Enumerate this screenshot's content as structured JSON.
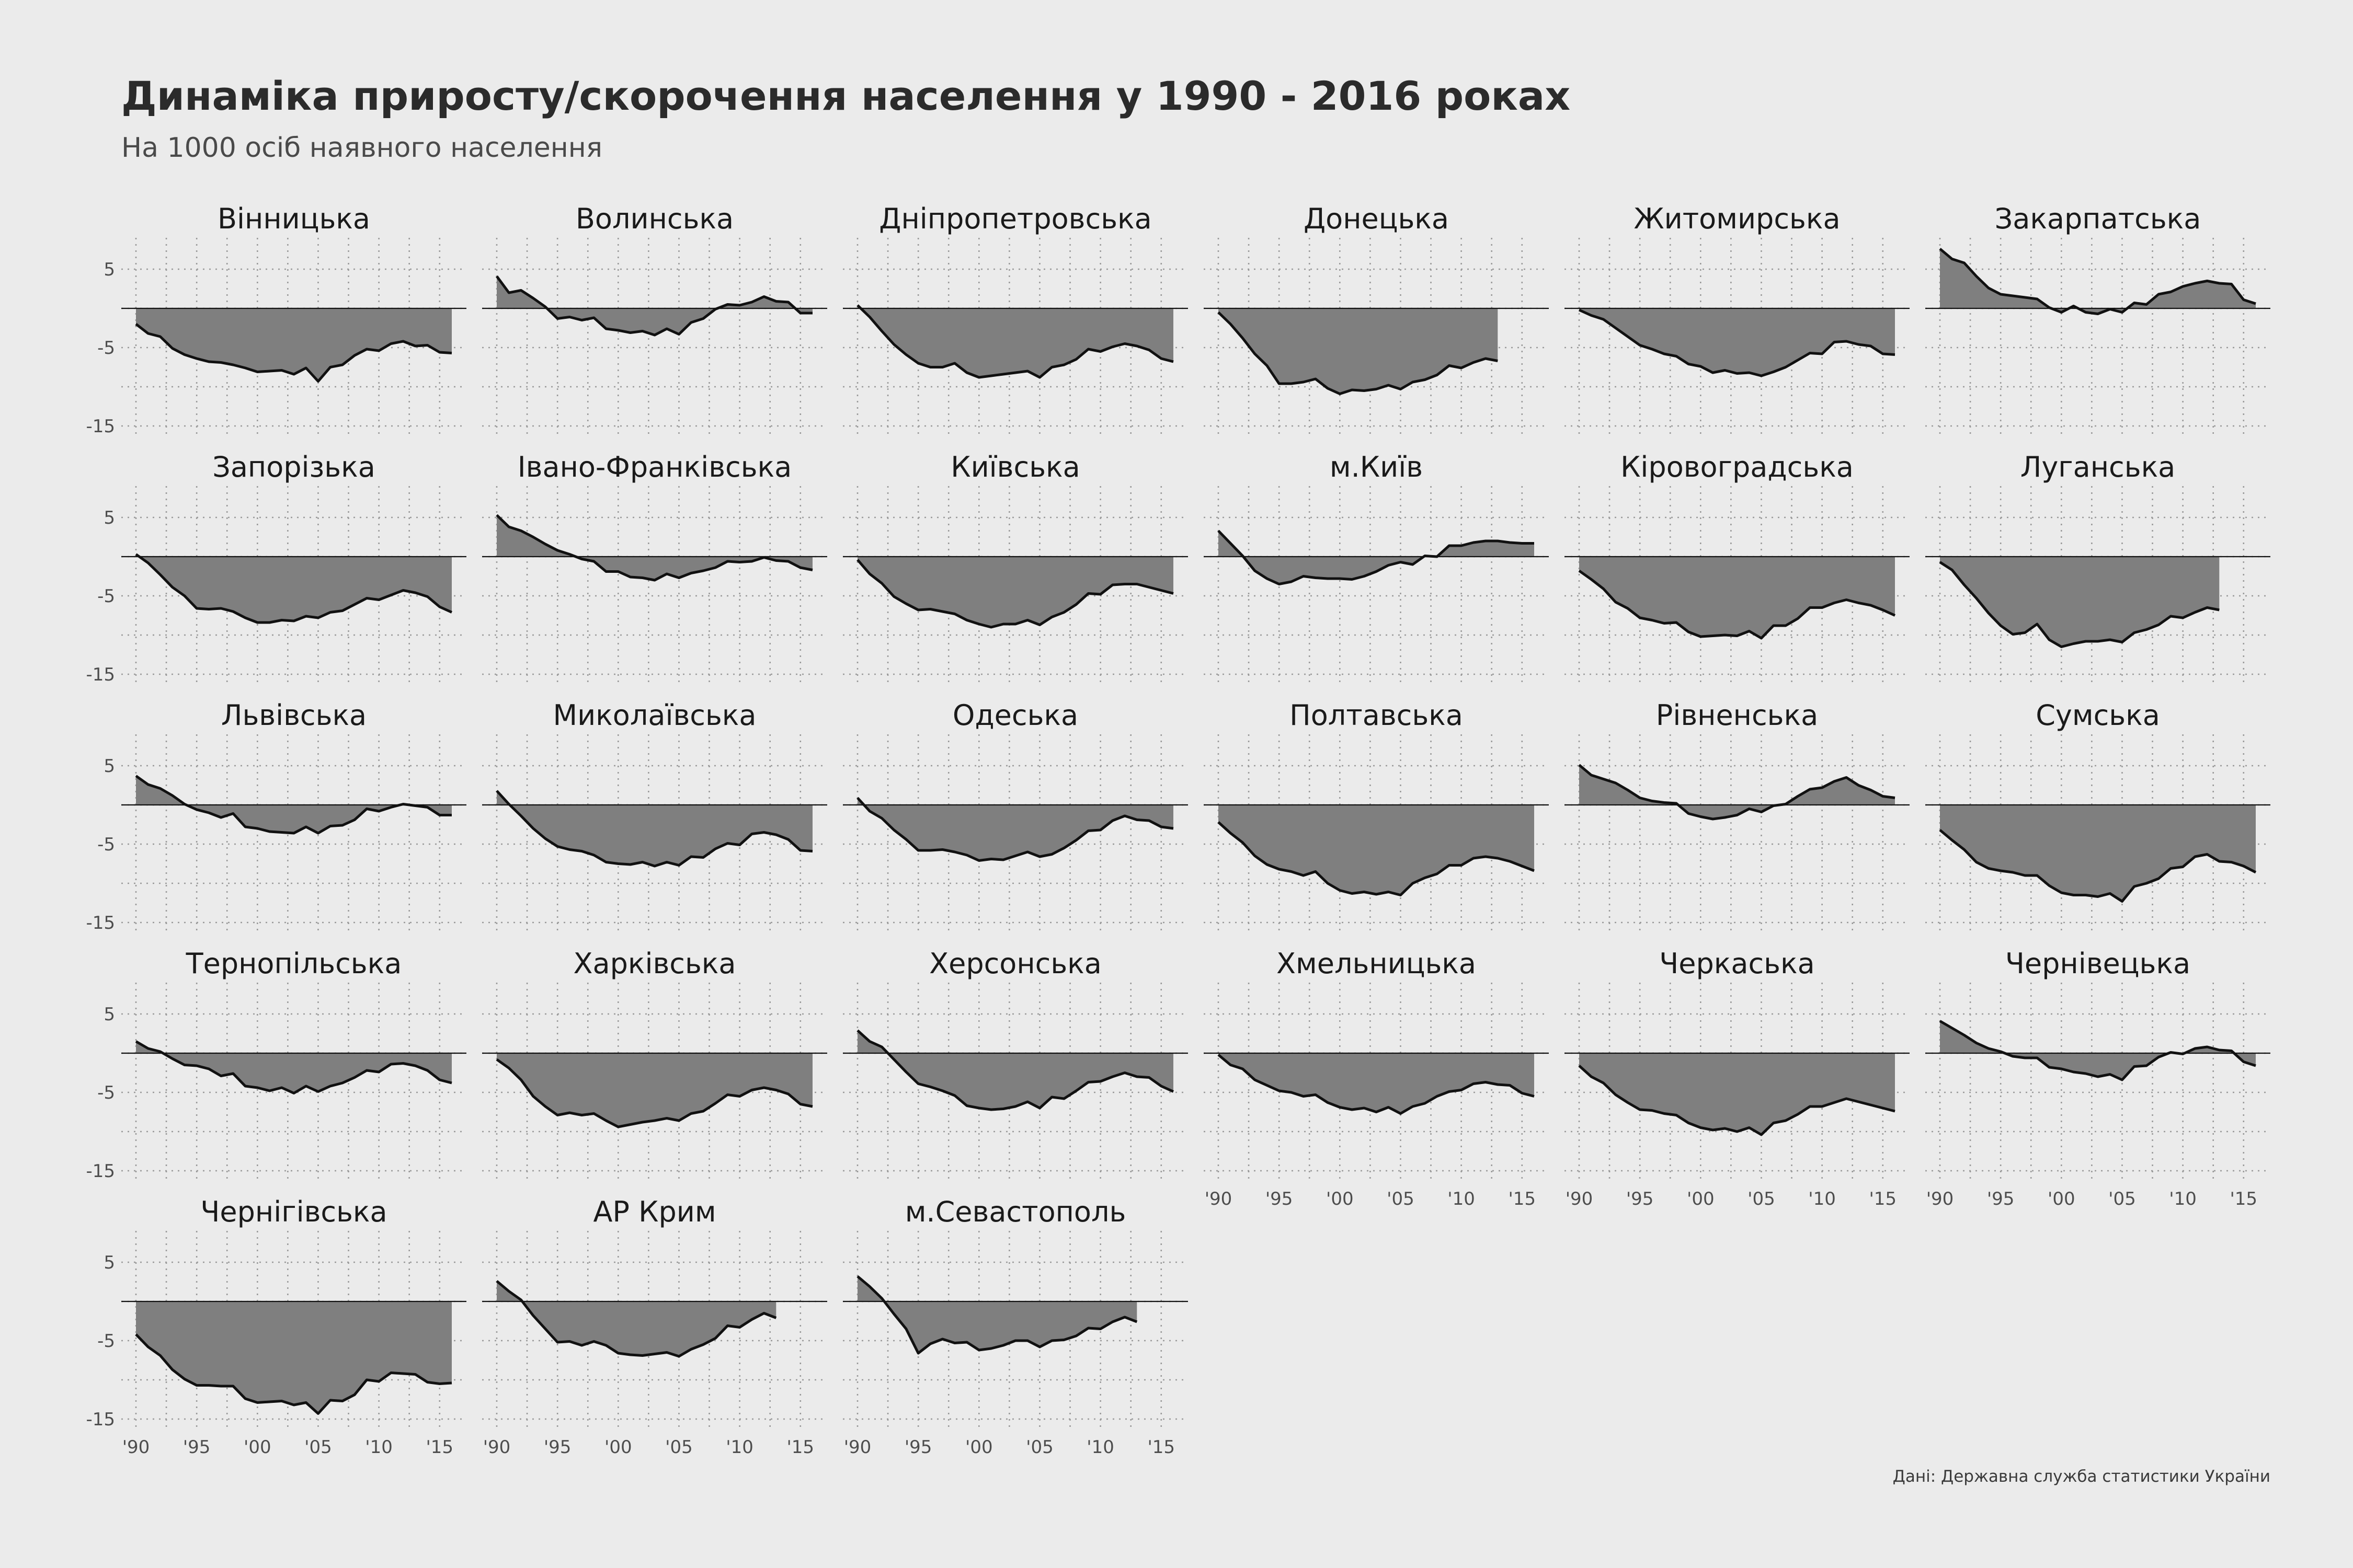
{
  "title": "Динаміка приросту/скорочення населення у 1990 - 2016 роках",
  "subtitle": "На 1000 осіб наявного населення",
  "caption": "Дані: Державна служба статистики України",
  "chart_data": {
    "type": "area",
    "x_start": 1990,
    "x_end": 2016,
    "x_ticks": [
      1990,
      1995,
      2000,
      2005,
      2010,
      2015
    ],
    "x_tick_labels": [
      "'90",
      "'95",
      "'00",
      "'05",
      "'10",
      "'15"
    ],
    "y_ticks": [
      5,
      -5,
      -15
    ],
    "y_tick_labels": [
      "5",
      "-5",
      "-15"
    ],
    "ylim": [
      -16,
      9
    ],
    "grid": true,
    "colors": {
      "area": "#7f7f7f",
      "line": "#111111",
      "background": "#ebebeb"
    },
    "panels": [
      {
        "name": "Вінницька",
        "values": [
          -2.0,
          -3.2,
          -3.6,
          -5.1,
          -5.9,
          -6.4,
          -6.8,
          -6.9,
          -7.2,
          -7.6,
          -8.1,
          -8.0,
          -7.9,
          -8.4,
          -7.6,
          -9.3,
          -7.5,
          -7.2,
          -6.0,
          -5.2,
          -5.4,
          -4.5,
          -4.2,
          -4.8,
          -4.7,
          -5.6,
          -5.7
        ]
      },
      {
        "name": "Волинська",
        "values": [
          4.1,
          2.0,
          2.3,
          1.3,
          0.2,
          -1.3,
          -1.1,
          -1.5,
          -1.2,
          -2.6,
          -2.8,
          -3.1,
          -2.9,
          -3.4,
          -2.6,
          -3.3,
          -1.8,
          -1.3,
          -0.1,
          0.5,
          0.4,
          0.8,
          1.5,
          0.9,
          0.8,
          -0.6,
          -0.6
        ]
      },
      {
        "name": "Дніпропетровська",
        "values": [
          0.4,
          -1.1,
          -2.9,
          -4.6,
          -5.9,
          -7.0,
          -7.5,
          -7.5,
          -7.0,
          -8.2,
          -8.8,
          -8.6,
          -8.4,
          -8.2,
          -8.0,
          -8.8,
          -7.5,
          -7.2,
          -6.5,
          -5.2,
          -5.5,
          -4.9,
          -4.5,
          -4.8,
          -5.3,
          -6.4,
          -6.8
        ]
      },
      {
        "name": "Донецька",
        "values": [
          -0.5,
          -2.0,
          -3.8,
          -5.8,
          -7.3,
          -9.6,
          -9.6,
          -9.4,
          -9.0,
          -10.2,
          -10.9,
          -10.4,
          -10.5,
          -10.3,
          -9.8,
          -10.3,
          -9.4,
          -9.1,
          -8.5,
          -7.3,
          -7.6,
          -6.9,
          -6.4,
          -6.7,
          null,
          null,
          null
        ]
      },
      {
        "name": "Житомирська",
        "values": [
          -0.2,
          -0.9,
          -1.4,
          -2.5,
          -3.6,
          -4.7,
          -5.2,
          -5.8,
          -6.1,
          -7.1,
          -7.4,
          -8.2,
          -7.9,
          -8.3,
          -8.2,
          -8.6,
          -8.1,
          -7.5,
          -6.6,
          -5.7,
          -5.8,
          -4.3,
          -4.2,
          -4.6,
          -4.8,
          -5.8,
          -5.9
        ]
      },
      {
        "name": "Закарпатська",
        "values": [
          7.6,
          6.3,
          5.8,
          4.1,
          2.6,
          1.8,
          1.6,
          1.4,
          1.2,
          0.1,
          -0.5,
          0.3,
          -0.5,
          -0.7,
          -0.1,
          -0.5,
          0.7,
          0.5,
          1.8,
          2.1,
          2.8,
          3.2,
          3.5,
          3.2,
          3.1,
          1.1,
          0.6
        ]
      },
      {
        "name": "Запорізька",
        "values": [
          0.3,
          -0.8,
          -2.3,
          -3.9,
          -5.0,
          -6.6,
          -6.7,
          -6.6,
          -7.0,
          -7.8,
          -8.4,
          -8.4,
          -8.1,
          -8.2,
          -7.6,
          -7.8,
          -7.1,
          -6.9,
          -6.1,
          -5.3,
          -5.5,
          -4.9,
          -4.3,
          -4.6,
          -5.1,
          -6.4,
          -7.1
        ]
      },
      {
        "name": "Івано-Франківська",
        "values": [
          5.3,
          3.8,
          3.3,
          2.5,
          1.6,
          0.8,
          0.3,
          -0.3,
          -0.6,
          -1.9,
          -1.9,
          -2.6,
          -2.7,
          -3.0,
          -2.2,
          -2.7,
          -2.1,
          -1.8,
          -1.4,
          -0.6,
          -0.7,
          -0.6,
          -0.1,
          -0.5,
          -0.6,
          -1.4,
          -1.7
        ]
      },
      {
        "name": "Київська",
        "values": [
          -0.4,
          -2.2,
          -3.4,
          -5.1,
          -6.0,
          -6.8,
          -6.7,
          -7.0,
          -7.3,
          -8.1,
          -8.6,
          -9.0,
          -8.6,
          -8.6,
          -8.1,
          -8.7,
          -7.7,
          -7.1,
          -6.1,
          -4.7,
          -4.8,
          -3.6,
          -3.5,
          -3.5,
          -3.9,
          -4.3,
          -4.7
        ]
      },
      {
        "name": "м.Київ",
        "values": [
          3.3,
          1.7,
          0.1,
          -1.8,
          -2.8,
          -3.5,
          -3.2,
          -2.5,
          -2.7,
          -2.8,
          -2.8,
          -2.9,
          -2.5,
          -1.9,
          -1.1,
          -0.7,
          -1.0,
          0.1,
          0.0,
          1.4,
          1.4,
          1.8,
          2.0,
          2.0,
          1.8,
          1.7,
          1.7
        ]
      },
      {
        "name": "Кіровоградська",
        "values": [
          -1.8,
          -2.9,
          -4.1,
          -5.8,
          -6.6,
          -7.8,
          -8.1,
          -8.5,
          -8.4,
          -9.6,
          -10.2,
          -10.1,
          -10.0,
          -10.1,
          -9.5,
          -10.4,
          -8.8,
          -8.8,
          -7.9,
          -6.5,
          -6.5,
          -5.9,
          -5.5,
          -5.9,
          -6.2,
          -6.8,
          -7.5
        ]
      },
      {
        "name": "Луганська",
        "values": [
          -0.7,
          -1.7,
          -3.6,
          -5.3,
          -7.2,
          -8.8,
          -9.9,
          -9.7,
          -8.6,
          -10.6,
          -11.5,
          -11.1,
          -10.8,
          -10.8,
          -10.6,
          -10.9,
          -9.7,
          -9.3,
          -8.7,
          -7.6,
          -7.8,
          -7.1,
          -6.5,
          -6.8,
          null,
          null,
          null
        ]
      },
      {
        "name": "Львівська",
        "values": [
          3.7,
          2.6,
          2.1,
          1.2,
          0.1,
          -0.6,
          -1.0,
          -1.6,
          -1.1,
          -2.8,
          -3.0,
          -3.4,
          -3.5,
          -3.6,
          -2.8,
          -3.6,
          -2.7,
          -2.6,
          -1.9,
          -0.5,
          -0.8,
          -0.3,
          0.1,
          -0.1,
          -0.3,
          -1.3,
          -1.3
        ]
      },
      {
        "name": "Миколаївська",
        "values": [
          1.8,
          0.1,
          -1.4,
          -3.0,
          -4.3,
          -5.3,
          -5.7,
          -5.9,
          -6.4,
          -7.3,
          -7.5,
          -7.6,
          -7.3,
          -7.8,
          -7.3,
          -7.7,
          -6.6,
          -6.7,
          -5.6,
          -4.9,
          -5.1,
          -3.7,
          -3.5,
          -3.8,
          -4.4,
          -5.8,
          -5.9
        ]
      },
      {
        "name": "Одеська",
        "values": [
          0.9,
          -0.8,
          -1.7,
          -3.2,
          -4.4,
          -5.8,
          -5.8,
          -5.7,
          -6.0,
          -6.4,
          -7.1,
          -6.9,
          -7.0,
          -6.5,
          -6.0,
          -6.6,
          -6.3,
          -5.5,
          -4.5,
          -3.3,
          -3.2,
          -2.0,
          -1.4,
          -1.9,
          -2.0,
          -2.8,
          -3.0
        ]
      },
      {
        "name": "Полтавська",
        "values": [
          -2.2,
          -3.6,
          -4.8,
          -6.5,
          -7.6,
          -8.2,
          -8.5,
          -9.0,
          -8.5,
          -10.0,
          -10.9,
          -11.3,
          -11.1,
          -11.4,
          -11.1,
          -11.5,
          -10.0,
          -9.3,
          -8.8,
          -7.7,
          -7.7,
          -6.8,
          -6.6,
          -6.8,
          -7.2,
          -7.8,
          -8.4
        ]
      },
      {
        "name": "Рівненська",
        "values": [
          5.1,
          3.8,
          3.3,
          2.8,
          1.9,
          0.9,
          0.5,
          0.3,
          0.2,
          -1.1,
          -1.5,
          -1.8,
          -1.6,
          -1.3,
          -0.5,
          -0.9,
          -0.1,
          0.1,
          1.1,
          2.0,
          2.2,
          3.0,
          3.5,
          2.5,
          1.9,
          1.1,
          0.9
        ]
      },
      {
        "name": "Сумська",
        "values": [
          -3.2,
          -4.5,
          -5.7,
          -7.3,
          -8.1,
          -8.4,
          -8.6,
          -9.0,
          -9.0,
          -10.3,
          -11.2,
          -11.5,
          -11.5,
          -11.7,
          -11.3,
          -12.3,
          -10.4,
          -10.0,
          -9.4,
          -8.1,
          -7.9,
          -6.6,
          -6.3,
          -7.2,
          -7.3,
          -7.8,
          -8.6
        ]
      },
      {
        "name": "Тернопільська",
        "values": [
          1.5,
          0.6,
          0.2,
          -0.7,
          -1.5,
          -1.6,
          -2.0,
          -2.9,
          -2.6,
          -4.2,
          -4.4,
          -4.8,
          -4.4,
          -5.1,
          -4.2,
          -4.9,
          -4.2,
          -3.8,
          -3.1,
          -2.2,
          -2.4,
          -1.4,
          -1.3,
          -1.6,
          -2.2,
          -3.4,
          -3.8
        ]
      },
      {
        "name": "Харківська",
        "values": [
          -0.8,
          -1.9,
          -3.4,
          -5.5,
          -6.8,
          -7.9,
          -7.6,
          -7.9,
          -7.7,
          -8.6,
          -9.4,
          -9.1,
          -8.8,
          -8.6,
          -8.3,
          -8.6,
          -7.7,
          -7.4,
          -6.4,
          -5.3,
          -5.5,
          -4.7,
          -4.4,
          -4.7,
          -5.2,
          -6.5,
          -6.8
        ]
      },
      {
        "name": "Херсонська",
        "values": [
          2.9,
          1.5,
          0.8,
          -0.8,
          -2.4,
          -3.9,
          -4.3,
          -4.8,
          -5.4,
          -6.7,
          -7.0,
          -7.2,
          -7.1,
          -6.8,
          -6.2,
          -7.0,
          -5.6,
          -5.8,
          -4.8,
          -3.7,
          -3.6,
          -3.0,
          -2.5,
          -3.0,
          -3.1,
          -4.2,
          -4.9
        ]
      },
      {
        "name": "Хмельницька",
        "values": [
          -0.2,
          -1.5,
          -2.0,
          -3.4,
          -4.1,
          -4.8,
          -5.0,
          -5.5,
          -5.3,
          -6.3,
          -6.9,
          -7.2,
          -7.0,
          -7.5,
          -6.9,
          -7.7,
          -6.8,
          -6.4,
          -5.5,
          -4.9,
          -4.7,
          -3.9,
          -3.7,
          -4.0,
          -4.1,
          -5.1,
          -5.5
        ]
      },
      {
        "name": "Черкаська",
        "values": [
          -1.6,
          -3.0,
          -3.8,
          -5.3,
          -6.3,
          -7.2,
          -7.3,
          -7.7,
          -7.9,
          -8.9,
          -9.5,
          -9.8,
          -9.6,
          -10.0,
          -9.5,
          -10.4,
          -8.9,
          -8.6,
          -7.8,
          -6.8,
          -6.8,
          -6.3,
          -5.8,
          -6.2,
          -6.6,
          -7.0,
          -7.4
        ]
      },
      {
        "name": "Чернівецька",
        "values": [
          4.1,
          3.2,
          2.3,
          1.3,
          0.6,
          0.2,
          -0.4,
          -0.6,
          -0.6,
          -1.8,
          -2.0,
          -2.4,
          -2.6,
          -3.0,
          -2.7,
          -3.4,
          -1.7,
          -1.6,
          -0.5,
          0.1,
          -0.1,
          0.6,
          0.8,
          0.4,
          0.3,
          -1.1,
          -1.6
        ]
      },
      {
        "name": "Чернігівська",
        "values": [
          -4.2,
          -5.8,
          -6.9,
          -8.7,
          -9.9,
          -10.7,
          -10.7,
          -10.8,
          -10.8,
          -12.4,
          -12.9,
          -12.8,
          -12.7,
          -13.2,
          -12.9,
          -14.3,
          -12.6,
          -12.7,
          -11.9,
          -10.0,
          -10.2,
          -9.1,
          -9.2,
          -9.3,
          -10.3,
          -10.5,
          -10.4
        ]
      },
      {
        "name": "АР Крим",
        "values": [
          2.6,
          1.3,
          0.2,
          -1.8,
          -3.5,
          -5.2,
          -5.1,
          -5.6,
          -5.1,
          -5.6,
          -6.6,
          -6.8,
          -6.9,
          -6.7,
          -6.5,
          -7.0,
          -6.1,
          -5.5,
          -4.7,
          -3.1,
          -3.3,
          -2.3,
          -1.5,
          -2.1,
          null,
          null,
          null
        ]
      },
      {
        "name": "м.Севастополь",
        "values": [
          3.2,
          1.9,
          0.4,
          -1.6,
          -3.5,
          -6.6,
          -5.4,
          -4.8,
          -5.3,
          -5.2,
          -6.2,
          -6.0,
          -5.6,
          -5.0,
          -5.0,
          -5.8,
          -5.0,
          -4.9,
          -4.4,
          -3.4,
          -3.5,
          -2.6,
          -2.0,
          -2.6,
          null,
          null,
          null
        ]
      }
    ]
  }
}
